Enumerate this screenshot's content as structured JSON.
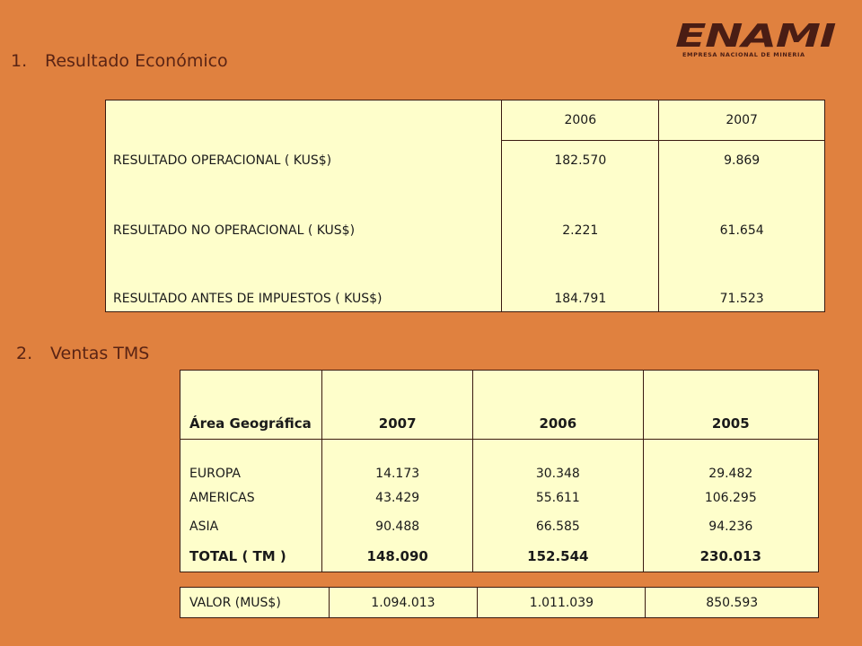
{
  "logo": {
    "brand": "ENAMI",
    "subtitle": "EMPRESA NACIONAL DE MINERIA"
  },
  "section1": {
    "number": "1.",
    "title": "Resultado Económico",
    "headers": [
      "2006",
      "2007"
    ],
    "rows": [
      {
        "label": "RESULTADO OPERACIONAL  ( KUS$)",
        "v2006": "182.570",
        "v2007": "9.869"
      },
      {
        "label": "RESULTADO NO OPERACIONAL  ( KUS$)",
        "v2006": "2.221",
        "v2007": "61.654"
      },
      {
        "label": "RESULTADO ANTES DE IMPUESTOS ( KUS$)",
        "v2006": "184.791",
        "v2007": "71.523"
      }
    ]
  },
  "section2": {
    "number": "2.",
    "title": "Ventas TMS",
    "headers": [
      "Área Geográfica",
      "2007",
      "2006",
      "2005"
    ],
    "rows": [
      {
        "label": "EUROPA",
        "v2007": "14.173",
        "v2006": "30.348",
        "v2005": "29.482"
      },
      {
        "label": "AMERICAS",
        "v2007": "43.429",
        "v2006": "55.611",
        "v2005": "106.295"
      },
      {
        "label": "ASIA",
        "v2007": "90.488",
        "v2006": "66.585",
        "v2005": "94.236"
      }
    ],
    "total": {
      "label": "TOTAL  ( TM )",
      "v2007": "148.090",
      "v2006": "152.544",
      "v2005": "230.013"
    },
    "valor": {
      "label": "VALOR (MUS$)",
      "v2007": "1.094.013",
      "v2006": "1.011.039",
      "v2005": "850.593"
    }
  },
  "colors": {
    "background": "#e0813f",
    "table_fill": "#fefecb",
    "heading": "#5a2414",
    "logo": "#4a1d14"
  }
}
